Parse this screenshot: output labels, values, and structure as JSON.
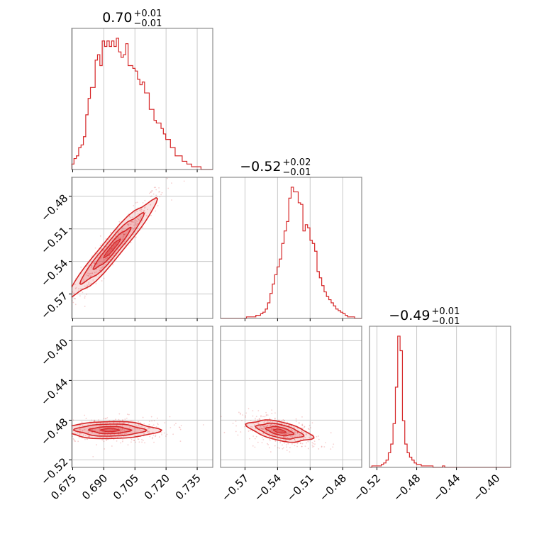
{
  "chart_data": {
    "type": "corner",
    "color": "#d62728",
    "parameters": [
      {
        "title": {
          "median": "0.70",
          "plus": "+0.01",
          "minus": "−0.01"
        },
        "range": [
          0.6745,
          0.7425
        ],
        "ticks": [
          0.675,
          0.69,
          0.705,
          0.72,
          0.735
        ],
        "tick_labels": [
          "0.675",
          "0.690",
          "0.705",
          "0.720",
          "0.735"
        ],
        "hist": [
          2,
          4,
          5,
          8,
          9,
          12,
          20,
          26,
          30,
          30,
          40,
          42,
          38,
          47,
          45,
          47,
          45,
          47,
          45,
          48,
          43,
          41,
          42,
          46,
          38,
          38,
          37,
          36,
          33,
          31,
          32,
          28,
          28,
          22,
          22,
          18,
          17,
          17,
          15,
          13,
          11,
          11,
          8,
          8,
          5,
          5,
          5,
          3,
          3,
          2,
          2,
          1,
          1,
          1,
          1,
          0,
          0,
          0,
          0,
          0
        ]
      },
      {
        "title": {
          "median": "−0.52",
          "plus": "+0.02",
          "minus": "−0.01"
        },
        "range": [
          -0.5925,
          -0.4625
        ],
        "ticks": [
          -0.57,
          -0.54,
          -0.51,
          -0.48
        ],
        "tick_labels": [
          "−0.57",
          "−0.54",
          "−0.51",
          "−0.48"
        ],
        "hist": [
          0,
          0,
          0,
          0,
          0,
          0,
          0,
          0,
          0,
          0,
          0,
          1,
          1,
          1,
          1,
          2,
          2,
          3,
          4,
          6,
          10,
          16,
          22,
          28,
          33,
          38,
          48,
          56,
          62,
          77,
          84,
          81,
          81,
          74,
          73,
          56,
          60,
          58,
          50,
          48,
          43,
          30,
          26,
          21,
          17,
          14,
          12,
          10,
          8,
          6,
          5,
          4,
          3,
          2,
          1,
          1,
          1,
          0,
          0,
          0
        ]
      },
      {
        "title": {
          "median": "−0.49",
          "plus": "+0.01",
          "minus": "−0.01"
        },
        "range": [
          -0.5275,
          -0.3855
        ],
        "ticks": [
          -0.52,
          -0.48,
          -0.44,
          -0.4
        ],
        "tick_labels": [
          "−0.52",
          "−0.48",
          "−0.44",
          "−0.40"
        ],
        "hist": [
          0,
          1,
          1,
          1,
          1,
          2,
          3,
          5,
          10,
          16,
          30,
          55,
          90,
          80,
          32,
          16,
          10,
          7,
          5,
          3,
          2,
          2,
          1,
          1,
          1,
          1,
          1,
          0,
          0,
          0,
          0,
          1,
          0,
          0,
          0,
          0,
          0,
          0,
          0,
          0,
          0,
          0,
          0,
          0,
          0,
          0,
          0,
          0,
          0,
          0,
          0,
          0,
          0,
          0,
          0,
          0,
          0,
          0,
          0,
          0
        ]
      }
    ],
    "pairs": [
      {
        "row": 1,
        "col": 0,
        "center": [
          0.694,
          -0.528
        ],
        "slope": 2.2,
        "spread": [
          0.0085,
          0.0038
        ]
      },
      {
        "row": 2,
        "col": 0,
        "center": [
          0.693,
          -0.49
        ],
        "slope": 0.0,
        "spread": [
          0.0095,
          0.0035
        ]
      },
      {
        "row": 2,
        "col": 1,
        "center": [
          -0.538,
          -0.491
        ],
        "slope": -0.22,
        "spread": [
          0.012,
          0.0038
        ]
      }
    ]
  }
}
